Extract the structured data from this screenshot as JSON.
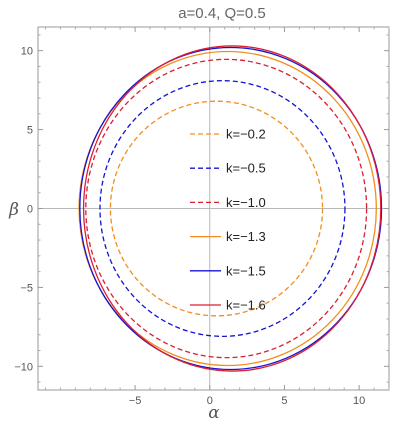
{
  "chart_data": {
    "type": "line",
    "title": "a=0.4, Q=0.5",
    "xlabel": "α",
    "ylabel": "β",
    "xlim": [
      -11.5,
      12
    ],
    "ylim": [
      -11.5,
      11.5
    ],
    "x_ticks": [
      -5,
      0,
      5,
      10
    ],
    "y_ticks": [
      -10,
      -5,
      0,
      5,
      10
    ],
    "x_tick_labels": [
      "−5",
      "0",
      "5",
      "10"
    ],
    "y_tick_labels": [
      "−10",
      "−5",
      "0",
      "5",
      "10"
    ],
    "grid": false,
    "axes_through_origin": true,
    "legend_position": "center",
    "series": [
      {
        "name": "k=−0.2",
        "color": "#F28E1C",
        "dash": "dashed",
        "center": [
          0.45,
          0
        ],
        "rx": 7.1,
        "ry": 6.8
      },
      {
        "name": "k=−0.5",
        "color": "#1414D2",
        "dash": "dashed",
        "center": [
          0.85,
          0
        ],
        "rx": 8.2,
        "ry": 8.1
      },
      {
        "name": "k=−1.0",
        "color": "#DC1E32",
        "dash": "dashed",
        "center": [
          1.1,
          0
        ],
        "rx": 9.4,
        "ry": 9.45
      },
      {
        "name": "k=−1.3",
        "color": "#F28E1C",
        "dash": "solid",
        "center": [
          1.2,
          0
        ],
        "rx": 9.95,
        "ry": 9.95
      },
      {
        "name": "k=−1.5",
        "color": "#1414D2",
        "dash": "solid",
        "center": [
          1.4,
          0
        ],
        "rx": 10.1,
        "ry": 10.2
      },
      {
        "name": "k=−1.6",
        "color": "#DC1E32",
        "dash": "solid",
        "center": [
          1.5,
          0
        ],
        "rx": 9.95,
        "ry": 10.3
      }
    ]
  }
}
